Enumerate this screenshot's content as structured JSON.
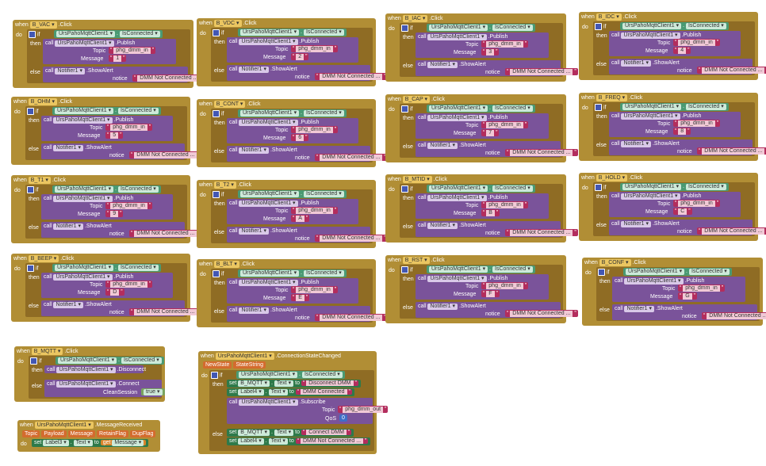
{
  "blocks": [
    {
      "id": "vac",
      "btn": "B_VAC",
      "msg": "1"
    },
    {
      "id": "vdc",
      "btn": "B_VDC",
      "msg": "2"
    },
    {
      "id": "iac",
      "btn": "B_IAC",
      "msg": "3"
    },
    {
      "id": "idc",
      "btn": "B_IDC",
      "msg": "4"
    },
    {
      "id": "ohm",
      "btn": "B_OHM",
      "msg": "5"
    },
    {
      "id": "cont",
      "btn": "B_CONT",
      "msg": "6"
    },
    {
      "id": "cap",
      "btn": "B_CAP",
      "msg": "7"
    },
    {
      "id": "freq",
      "btn": "B_FREQ",
      "msg": "8"
    },
    {
      "id": "t1",
      "btn": "B_T1",
      "msg": "9"
    },
    {
      "id": "t2",
      "btn": "B_T2",
      "msg": "A"
    },
    {
      "id": "mtid",
      "btn": "B_MTID",
      "msg": "B"
    },
    {
      "id": "hold",
      "btn": "B_HOLD",
      "msg": "C"
    },
    {
      "id": "beep",
      "btn": "B_BEEP",
      "msg": "D"
    },
    {
      "id": "blt",
      "btn": "B_BLT",
      "msg": "E"
    },
    {
      "id": "rst",
      "btn": "B_RST",
      "msg": "F"
    },
    {
      "id": "conf",
      "btn": "B_CONF",
      "msg": "G"
    }
  ],
  "common": {
    "when": "when",
    "click": ".Click",
    "do": "do",
    "if": "if",
    "then": "then",
    "else": "else",
    "call": "call",
    "client": "UrsPahoMqttClient1",
    "is_connected": "IsConnected",
    "publish": ".Publish",
    "topic_label": "Topic",
    "topic": "phg_dmm_in",
    "message_label": "Message",
    "notifier": "Notifier1",
    "show_alert": ".ShowAlert",
    "notice_label": "notice",
    "not_connected": "DMM Not Connected ..."
  },
  "mqtt": {
    "btn": "B_MQTT",
    "disconnect": ".Disconnect",
    "connect": ".Connect",
    "clean_session_label": "CleanSession",
    "clean_session": "true"
  },
  "msg_received": {
    "event": ".MessageReceived",
    "params": [
      "Topic",
      "Payload",
      "Message",
      "RetainFlag",
      "DupFlag"
    ],
    "set": "set",
    "label": "Label3",
    "prop": "Text",
    "to": "to",
    "get": "get",
    "get_var": "Message"
  },
  "state_changed": {
    "event": ".ConnectionStateChanged",
    "params": [
      "NewState",
      "StateString"
    ],
    "set": "set",
    "to": "to",
    "prop": "Text",
    "b_mqtt": "B_MQTT",
    "label4": "Label4",
    "disconnect_dmm": "Disconnect DMM",
    "dmm_connected": "DMM Connected",
    "subscribe": ".Subscribe",
    "topic_label": "Topic",
    "topic": "phg_dmm_out",
    "qos_label": "QoS",
    "qos": "0",
    "connect_dmm": "Connect DMM",
    "dmm_not_connected": "DMM Not Connected ..."
  },
  "colors": {
    "event": "#b18e35",
    "control": "#8f6c24",
    "component": "#4a9a73",
    "method": "#7a539a",
    "text": "#b32d5d"
  }
}
